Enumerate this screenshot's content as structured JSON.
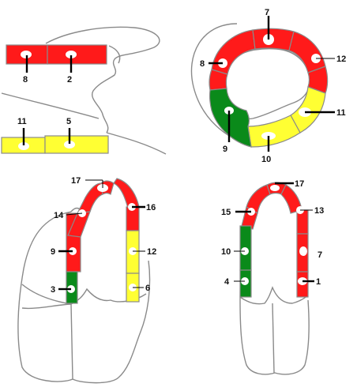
{
  "colors": {
    "red": "#ff1a1a",
    "yellow": "#ffff33",
    "green": "#0a8a1a",
    "outline": "#8a8a8a",
    "label": "#111111"
  },
  "panels": {
    "top_left": {
      "labels": [
        "8",
        "2",
        "11",
        "5"
      ]
    },
    "top_right": {
      "labels": [
        "7",
        "8",
        "12",
        "11",
        "9",
        "10"
      ]
    },
    "bottom_left": {
      "labels": [
        "17",
        "14",
        "16",
        "9",
        "12",
        "3",
        "6"
      ]
    },
    "bottom_right": {
      "labels": [
        "17",
        "15",
        "13",
        "10",
        "7",
        "4",
        "1"
      ]
    }
  }
}
